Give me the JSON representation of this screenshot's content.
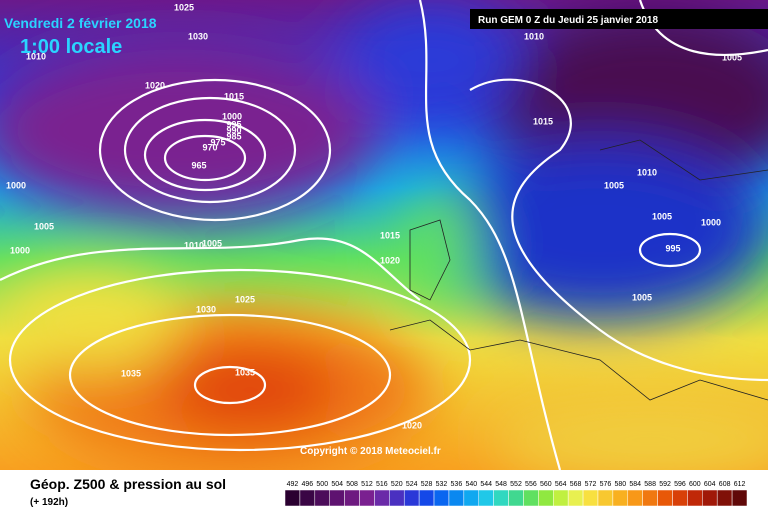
{
  "header": {
    "date": "Vendredi 2 février 2018",
    "time": "1:00 locale",
    "run": "Run GEM 0 Z du Jeudi 25 janvier 2018"
  },
  "copyright": "Copyright © 2018 Meteociel.fr",
  "footer": {
    "title": "Géop. Z500 & pression au sol",
    "lead": "(+ 192h)"
  },
  "isobar_labels": [
    "1025",
    "1030",
    "1010",
    "1020",
    "1015",
    "1000",
    "995",
    "990",
    "985",
    "975",
    "970",
    "965",
    "1000",
    "1005",
    "1010",
    "1005",
    "1000",
    "1015",
    "1020",
    "1025",
    "1030",
    "1035",
    "1035",
    "1020",
    "1010",
    "1005",
    "1015",
    "1010",
    "1005",
    "1005",
    "1000",
    "995",
    "1005"
  ],
  "legend": {
    "labels": [
      492,
      496,
      500,
      504,
      508,
      512,
      516,
      520,
      524,
      528,
      532,
      536,
      540,
      544,
      548,
      552,
      556,
      560,
      564,
      568,
      572,
      576,
      580,
      584,
      588,
      592,
      596,
      600,
      604,
      608,
      612
    ],
    "colors": [
      "#2a0030",
      "#3a0645",
      "#4c0c5a",
      "#5e1270",
      "#6e1a80",
      "#7a2090",
      "#6a2aa8",
      "#4a30c0",
      "#2a38d8",
      "#1448e8",
      "#0a66f0",
      "#0a88f0",
      "#10a8f0",
      "#20c8e8",
      "#30d8c0",
      "#40d890",
      "#60e060",
      "#90e840",
      "#c0f040",
      "#e8f050",
      "#f8e040",
      "#f8c830",
      "#f8b020",
      "#f89818",
      "#f07810",
      "#e85808",
      "#d84008",
      "#c02808",
      "#a01808",
      "#801008",
      "#600808"
    ]
  }
}
